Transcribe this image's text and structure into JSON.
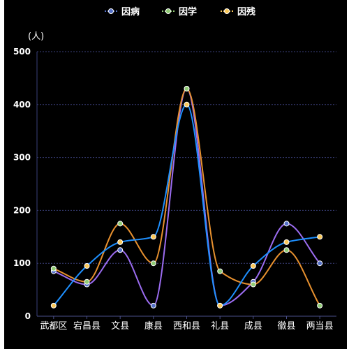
{
  "chart_data": {
    "type": "line",
    "smooth": true,
    "title": "",
    "xlabel": "",
    "ylabel": "(人)",
    "ylim": [
      0,
      500
    ],
    "yticks": [
      0,
      100,
      200,
      300,
      400,
      500
    ],
    "grid": true,
    "legend_position": "top-center",
    "categories": [
      "武都区",
      "宕昌县",
      "文县",
      "康县",
      "西和县",
      "礼县",
      "成县",
      "徽县",
      "两当县"
    ],
    "series": [
      {
        "name": "因病",
        "color": "#9b6cf0",
        "marker_color": "#5470c6",
        "values": [
          85,
          60,
          125,
          20,
          430,
          20,
          65,
          175,
          100
        ]
      },
      {
        "name": "因学",
        "color": "#e8912f",
        "marker_color": "#91cc75",
        "values": [
          90,
          65,
          175,
          100,
          430,
          85,
          60,
          125,
          20
        ]
      },
      {
        "name": "因残",
        "color": "#1e90ff",
        "marker_color": "#fac858",
        "values": [
          20,
          95,
          140,
          150,
          400,
          20,
          95,
          140,
          150
        ]
      }
    ]
  }
}
